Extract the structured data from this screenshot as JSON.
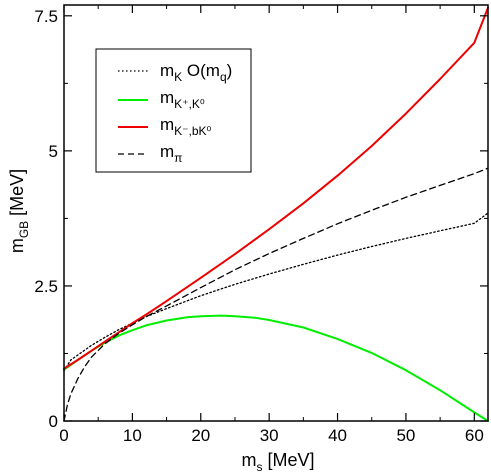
{
  "chart_data": {
    "type": "line",
    "xlabel": {
      "main": "m",
      "sub": "s",
      "unit": " [MeV]"
    },
    "ylabel": {
      "main": "m",
      "sub": "GB",
      "unit": " [MeV]"
    },
    "xlim": [
      0,
      62
    ],
    "ylim": [
      0,
      7.7
    ],
    "x_ticks": [
      0,
      10,
      20,
      30,
      40,
      50,
      60
    ],
    "y_ticks": [
      0,
      2.5,
      5,
      7.5
    ],
    "x_tick_labels": [
      "0",
      "10",
      "20",
      "30",
      "40",
      "50",
      "60"
    ],
    "y_tick_labels": [
      "0",
      "2.5",
      "5",
      "7.5"
    ],
    "grid": false,
    "legend_position": "top-left",
    "series": [
      {
        "name": {
          "main": "m",
          "sub": "K",
          "suffix": " O(m",
          "suffix_sub": "q",
          "suffix_end": ")"
        },
        "color": "#000000",
        "style": "dotted",
        "x": [
          0,
          1,
          2,
          4,
          6,
          8,
          10,
          12,
          15,
          20,
          25,
          30,
          35,
          40,
          45,
          50,
          55,
          60,
          62
        ],
        "y": [
          0.93,
          1.13,
          1.22,
          1.4,
          1.55,
          1.69,
          1.81,
          1.93,
          2.08,
          2.32,
          2.53,
          2.72,
          2.9,
          3.07,
          3.23,
          3.38,
          3.52,
          3.66,
          3.85
        ]
      },
      {
        "name": {
          "main": "m",
          "sub": "K⁺,K⁰"
        },
        "color": "#00ee00",
        "style": "solid",
        "x": [
          0,
          2,
          4,
          6,
          8,
          10,
          12,
          15,
          18,
          20,
          23,
          25,
          28,
          30,
          35,
          40,
          45,
          50,
          55,
          60,
          62
        ],
        "y": [
          0.95,
          1.13,
          1.3,
          1.45,
          1.58,
          1.68,
          1.77,
          1.86,
          1.92,
          1.94,
          1.95,
          1.94,
          1.91,
          1.87,
          1.73,
          1.52,
          1.26,
          0.94,
          0.57,
          0.16,
          0.0
        ]
      },
      {
        "name": {
          "main": "m",
          "sub": "K⁻,bK⁰"
        },
        "color": "#ee0000",
        "style": "solid",
        "x": [
          0,
          2,
          4,
          6,
          8,
          10,
          12,
          15,
          20,
          25,
          30,
          35,
          40,
          45,
          50,
          55,
          60,
          62
        ],
        "y": [
          0.97,
          1.13,
          1.3,
          1.47,
          1.64,
          1.81,
          1.97,
          2.22,
          2.65,
          3.09,
          3.55,
          4.03,
          4.54,
          5.09,
          5.69,
          6.33,
          7.0,
          7.65
        ]
      },
      {
        "name": {
          "main": "m",
          "sub": "π"
        },
        "color": "#000000",
        "style": "dashed",
        "x": [
          0,
          0.5,
          1,
          2,
          3,
          4,
          6,
          8,
          10,
          12,
          15,
          20,
          25,
          30,
          35,
          40,
          45,
          50,
          55,
          60,
          62
        ],
        "y": [
          0.0,
          0.3,
          0.5,
          0.78,
          1.0,
          1.18,
          1.43,
          1.62,
          1.78,
          1.93,
          2.13,
          2.47,
          2.8,
          3.1,
          3.38,
          3.65,
          3.9,
          4.14,
          4.36,
          4.58,
          4.68
        ]
      }
    ]
  }
}
